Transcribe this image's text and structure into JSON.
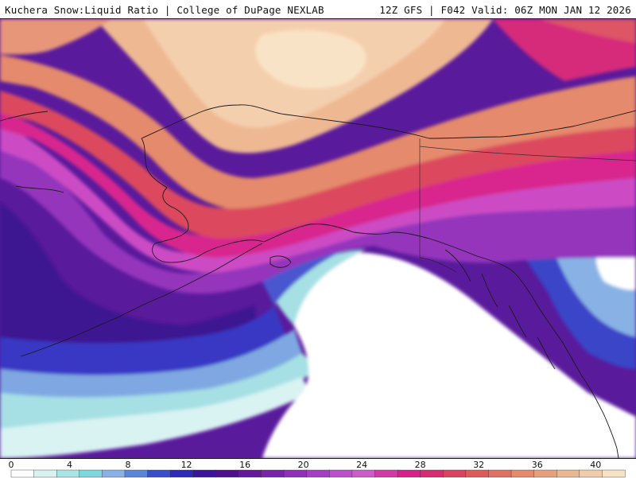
{
  "header": {
    "left_title": "Kuchera Snow:Liquid Ratio | College of DuPage NEXLAB",
    "right_title": "12Z GFS | F042 Valid: 06Z MON JAN 12 2026"
  },
  "map": {
    "region": "Alaska and Gulf of Alaska",
    "field": "Kuchera Snow:Liquid Ratio"
  },
  "legend": {
    "min": 0,
    "max": 42,
    "tick_labels": [
      "0",
      "4",
      "8",
      "12",
      "16",
      "20",
      "24",
      "28",
      "32",
      "36",
      "40"
    ],
    "colors": [
      "#ffffff",
      "#d8f2f2",
      "#a8e6e6",
      "#7cd8de",
      "#88b2e6",
      "#5a86da",
      "#3a4ecc",
      "#2c2ab8",
      "#3a149a",
      "#50108e",
      "#64189c",
      "#7a22aa",
      "#9030b8",
      "#a63ec4",
      "#bc50cc",
      "#cc5cc8",
      "#d23aa8",
      "#d8208a",
      "#d82c70",
      "#da4460",
      "#dd5c5a",
      "#e07060",
      "#e58a6a",
      "#e8a07c",
      "#ecb690",
      "#f2cca8",
      "#f8e2c4"
    ]
  }
}
